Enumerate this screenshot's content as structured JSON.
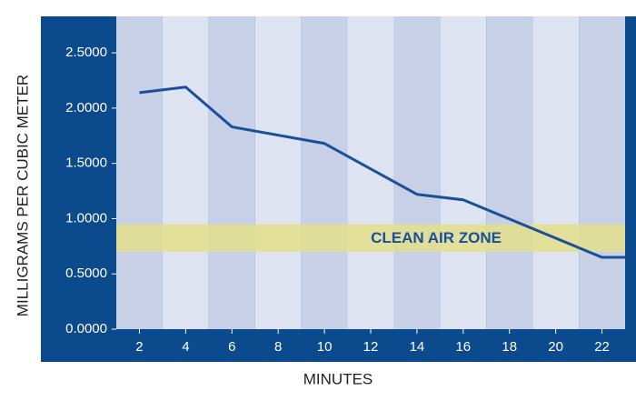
{
  "chart_data": {
    "type": "line",
    "x_label": "MINUTES",
    "y_label": "MILLIGRAMS PER CUBIC METER",
    "x": [
      2,
      4,
      6,
      10,
      14,
      16,
      22,
      23
    ],
    "series": [
      {
        "color": "#1b4f99",
        "values": [
          2.14,
          2.19,
          1.83,
          1.68,
          1.22,
          1.17,
          0.65,
          0.65
        ]
      }
    ],
    "xlim": [
      1,
      23
    ],
    "xticks": [
      2,
      4,
      6,
      8,
      10,
      12,
      14,
      16,
      18,
      20,
      22
    ],
    "ylim": [
      0,
      2.83
    ],
    "yticks": [
      {
        "value": 0,
        "label": "0.0000"
      },
      {
        "value": 0.5,
        "label": "0.5000"
      },
      {
        "value": 1,
        "label": "1.0000"
      },
      {
        "value": 1.5,
        "label": "1.5000"
      },
      {
        "value": 2,
        "label": "2.0000"
      },
      {
        "value": 2.5,
        "label": "2.5000"
      }
    ],
    "zone": {
      "label": "CLEAN AIR ZONE",
      "range": [
        0.7,
        0.95
      ],
      "color": "#e3df8c"
    }
  }
}
